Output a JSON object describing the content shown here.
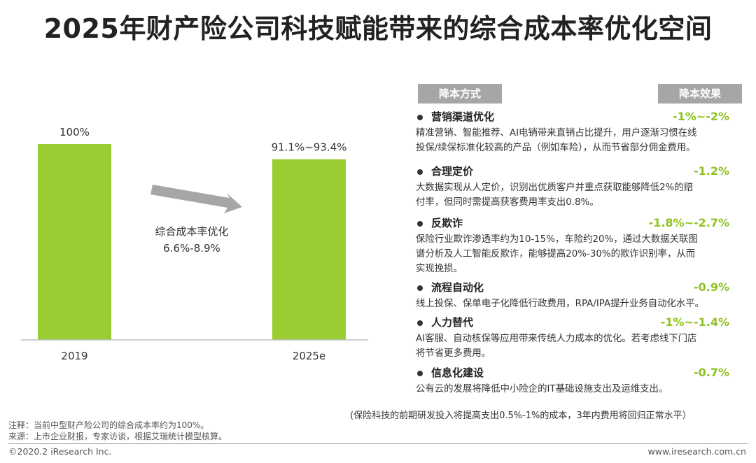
{
  "title": "2025年财产险公司科技赋能带来的综合成本率优化空间",
  "chart_data": {
    "type": "bar",
    "categories": [
      "2019",
      "2025e"
    ],
    "values": [
      100,
      92.25
    ],
    "value_labels": [
      "100%",
      "91.1%~93.4%"
    ],
    "range_2025e": [
      91.1,
      93.4
    ],
    "annotation": [
      "综合成本率优化",
      "6.6%-8.9%"
    ],
    "colors": {
      "bar": "#9acd32",
      "arrow": "#a6a6a6"
    }
  },
  "table": {
    "headers": {
      "method": "降本方式",
      "effect": "降本效果"
    },
    "items": [
      {
        "title": "营销渠道优化",
        "effect": "-1%~-2%",
        "desc": [
          "精准营销、智能推荐、AI电销带来直销占比提升，用户逐渐习惯在线",
          "投保/续保标准化较高的产品（例如车险），从而节省部分佣金费用。"
        ]
      },
      {
        "title": "合理定价",
        "effect": "-1.2%",
        "desc": [
          "大数据实现从人定价，识别出优质客户并重点获取能够降低2%的赔",
          "付率，但同时需提高获客费用率支出0.8%。"
        ]
      },
      {
        "title": "反欺诈",
        "effect": "-1.8%~-2.7%",
        "desc": [
          "保险行业欺诈渗透率约为10-15%，车险约20%，通过大数据关联图",
          "谱分析及人工智能反欺诈，能够提高20%-30%的欺诈识别率，从而",
          "实现挽损。"
        ]
      },
      {
        "title": "流程自动化",
        "effect": "-0.9%",
        "desc": [
          "线上投保、保单电子化降低行政费用，RPA/IPA提升业务自动化水平。"
        ]
      },
      {
        "title": "人力替代",
        "effect": "-1%~-1.4%",
        "desc": [
          "AI客服、自动核保等应用带来传统人力成本的优化。若考虑线下门店",
          "将节省更多费用。"
        ]
      },
      {
        "title": "信息化建设",
        "effect": "-0.7%",
        "desc": [
          "公有云的发展将降低中小险企的IT基础设施支出及运维支出。"
        ]
      }
    ],
    "effect_color": "#8dc21f"
  },
  "note_right": "(保险科技的前期研发投入将提高支出0.5%-1%的成本，3年内费用将回归正常水平）",
  "notes": {
    "note1": "注释：当前中型财产险公司的综合成本率约为100%。",
    "note2": "来源：上市企业财报，专家访谈，根据艾瑞统计模型核算。"
  },
  "footer": {
    "left": "©2020.2 iResearch Inc.",
    "right": "www.iresearch.com.cn"
  }
}
